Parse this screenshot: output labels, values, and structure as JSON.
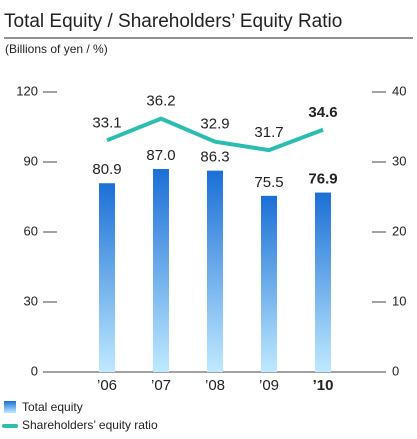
{
  "chart_data": {
    "type": "bar_line",
    "title": "Total Equity / Shareholders’ Equity Ratio",
    "subtitle": "(Billions of yen / %)",
    "categories": [
      "’06",
      "’07",
      "’08",
      "’09",
      "’10"
    ],
    "emphasized_category": 4,
    "series": [
      {
        "name": "Total equity",
        "type": "bar",
        "color": "#1b6fd6",
        "color_light": "#bfeaff",
        "values": [
          80.9,
          87.0,
          86.3,
          75.5,
          76.9
        ],
        "value_labels": [
          "80.9",
          "87.0",
          "86.3",
          "75.5",
          "76.9"
        ]
      },
      {
        "name": "Shareholders’ equity ratio",
        "type": "line",
        "axis": "y2",
        "color": "#2bbdb0",
        "values": [
          33.1,
          36.2,
          32.9,
          31.7,
          34.6
        ]
      }
    ],
    "ylim": [
      0,
      120
    ],
    "yticks": [
      0,
      30,
      60,
      90,
      120
    ],
    "y2lim": [
      0,
      40
    ],
    "y2ticks": [
      0,
      10,
      20,
      30,
      40
    ]
  }
}
